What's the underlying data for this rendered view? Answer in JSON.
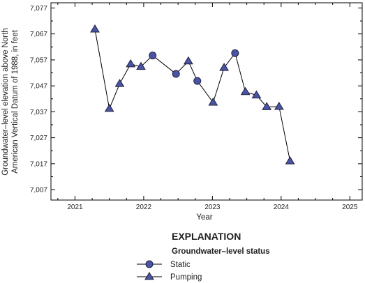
{
  "chart_data": {
    "type": "scatter",
    "xlabel": "Year",
    "ylabel_lines": [
      "Groundwater–level elevation above North",
      "American Vertical Datum of 1988, in feet"
    ],
    "xlim": [
      2020.65,
      2025.18
    ],
    "ylim": [
      7003,
      7079
    ],
    "xticks": [
      2021,
      2022,
      2023,
      2024,
      2025
    ],
    "xtick_labels": [
      "2021",
      "2022",
      "2023",
      "2024",
      "2025"
    ],
    "yticks": [
      7007,
      7017,
      7027,
      7037,
      7047,
      7057,
      7067,
      7077
    ],
    "ytick_labels": [
      "7,007",
      "7,017",
      "7,027",
      "7,037",
      "7,047",
      "7,057",
      "7,067",
      "7,077"
    ],
    "grid": false,
    "line_color": "#000000",
    "marker_fill": "#4a54a6",
    "marker_stroke": "#1f1f3a",
    "points": [
      {
        "date": "2021-04",
        "x": 2021.29,
        "y": 7068.8,
        "status": "Pumping"
      },
      {
        "date": "2021-07",
        "x": 2021.5,
        "y": 7038.2,
        "status": "Pumping"
      },
      {
        "date": "2021-08",
        "x": 2021.65,
        "y": 7047.8,
        "status": "Pumping"
      },
      {
        "date": "2021-10",
        "x": 2021.81,
        "y": 7055.4,
        "status": "Pumping"
      },
      {
        "date": "2021-12",
        "x": 2021.96,
        "y": 7054.4,
        "status": "Pumping"
      },
      {
        "date": "2022-02",
        "x": 2022.13,
        "y": 7058.7,
        "status": "Static"
      },
      {
        "date": "2022-06",
        "x": 2022.47,
        "y": 7051.6,
        "status": "Static"
      },
      {
        "date": "2022-08",
        "x": 2022.65,
        "y": 7056.5,
        "status": "Pumping"
      },
      {
        "date": "2022-09",
        "x": 2022.78,
        "y": 7048.9,
        "status": "Static"
      },
      {
        "date": "2023-01",
        "x": 2023.01,
        "y": 7040.6,
        "status": "Pumping"
      },
      {
        "date": "2023-03",
        "x": 2023.17,
        "y": 7054.0,
        "status": "Pumping"
      },
      {
        "date": "2023-05",
        "x": 2023.33,
        "y": 7059.6,
        "status": "Static"
      },
      {
        "date": "2023-06",
        "x": 2023.48,
        "y": 7044.7,
        "status": "Pumping"
      },
      {
        "date": "2023-08",
        "x": 2023.64,
        "y": 7043.4,
        "status": "Pumping"
      },
      {
        "date": "2023-10",
        "x": 2023.79,
        "y": 7038.9,
        "status": "Pumping"
      },
      {
        "date": "2023-12",
        "x": 2023.97,
        "y": 7039.0,
        "status": "Pumping"
      },
      {
        "date": "2024-02",
        "x": 2024.13,
        "y": 7018.0,
        "status": "Pumping"
      }
    ]
  },
  "legend": {
    "title": "EXPLANATION",
    "subtitle": "Groundwater–level status",
    "items": [
      {
        "label": "Static",
        "marker": "circle"
      },
      {
        "label": "Pumping",
        "marker": "triangle"
      }
    ]
  }
}
